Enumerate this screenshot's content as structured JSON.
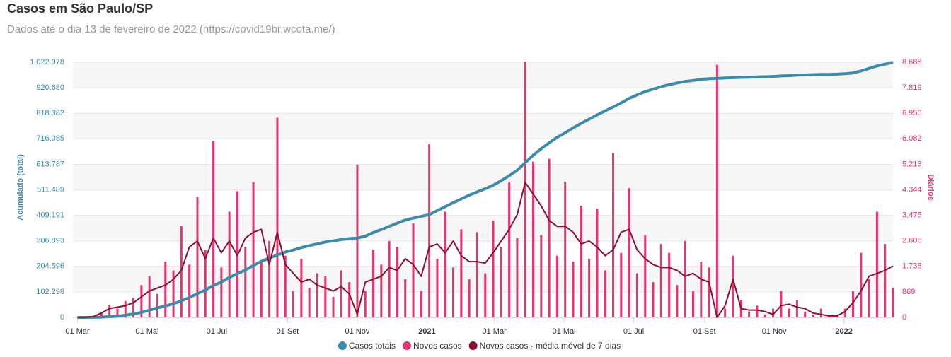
{
  "chart_data": {
    "type": "combo",
    "title": "Casos em São Paulo/SP",
    "subtitle": "Dados até o dia 13 de fevereiro de 2022 (https://covid19br.wcota.me/)",
    "ylabel": "Acumulado (total)",
    "y2label": "Diários",
    "grid": true,
    "legend": "bottom",
    "xlim": [
      "2020-02-26",
      "2022-02-13"
    ],
    "xticks": [
      {
        "value": "2020-03-01",
        "label": "01 Mar"
      },
      {
        "value": "2020-05-01",
        "label": "01 Mai"
      },
      {
        "value": "2020-07-01",
        "label": "01 Jul"
      },
      {
        "value": "2020-09-01",
        "label": "01 Set"
      },
      {
        "value": "2020-11-01",
        "label": "01 Nov"
      },
      {
        "value": "2021-01-01",
        "label": "2021"
      },
      {
        "value": "2021-03-01",
        "label": "01 Mar"
      },
      {
        "value": "2021-05-01",
        "label": "01 Mai"
      },
      {
        "value": "2021-07-01",
        "label": "01 Jul"
      },
      {
        "value": "2021-09-01",
        "label": "01 Set"
      },
      {
        "value": "2021-11-01",
        "label": "01 Nov"
      },
      {
        "value": "2022-01-01",
        "label": "2022"
      }
    ],
    "ylim": [
      0,
      1022978
    ],
    "yticks": [
      0,
      {
        "value": 102298,
        "label": "102.298"
      },
      {
        "value": 204596,
        "label": "204.596"
      },
      {
        "value": 306893,
        "label": "306.893"
      },
      {
        "value": 409191,
        "label": "409.191"
      },
      {
        "value": 511489,
        "label": "511.489"
      },
      {
        "value": 613787,
        "label": "613.787"
      },
      {
        "value": 716085,
        "label": "716.085"
      },
      {
        "value": 818382,
        "label": "818.382"
      },
      {
        "value": 920680,
        "label": "920.680"
      },
      {
        "value": 1022978,
        "label": "1.022.978"
      }
    ],
    "y2lim": [
      0,
      8688
    ],
    "y2ticks": [
      0,
      869,
      {
        "value": 1738,
        "label": "1.738"
      },
      {
        "value": 2606,
        "label": "2.606"
      },
      {
        "value": 3475,
        "label": "3.475"
      },
      {
        "value": 4344,
        "label": "4.344"
      },
      {
        "value": 5213,
        "label": "5.213"
      },
      {
        "value": 6082,
        "label": "6.082"
      },
      {
        "value": 6950,
        "label": "6.950"
      },
      {
        "value": 7819,
        "label": "7.819"
      },
      {
        "value": 8688,
        "label": "8.688"
      }
    ],
    "x": [
      "2020-03-01",
      "2020-03-08",
      "2020-03-15",
      "2020-03-22",
      "2020-03-29",
      "2020-04-05",
      "2020-04-12",
      "2020-04-19",
      "2020-04-26",
      "2020-05-03",
      "2020-05-10",
      "2020-05-17",
      "2020-05-24",
      "2020-05-31",
      "2020-06-07",
      "2020-06-14",
      "2020-06-21",
      "2020-06-28",
      "2020-07-05",
      "2020-07-12",
      "2020-07-19",
      "2020-07-26",
      "2020-08-02",
      "2020-08-09",
      "2020-08-16",
      "2020-08-23",
      "2020-08-30",
      "2020-09-06",
      "2020-09-13",
      "2020-09-20",
      "2020-09-27",
      "2020-10-04",
      "2020-10-11",
      "2020-10-18",
      "2020-10-25",
      "2020-11-01",
      "2020-11-08",
      "2020-11-15",
      "2020-11-22",
      "2020-11-29",
      "2020-12-06",
      "2020-12-13",
      "2020-12-20",
      "2020-12-27",
      "2021-01-03",
      "2021-01-10",
      "2021-01-17",
      "2021-01-24",
      "2021-01-31",
      "2021-02-07",
      "2021-02-14",
      "2021-02-21",
      "2021-02-28",
      "2021-03-07",
      "2021-03-14",
      "2021-03-21",
      "2021-03-28",
      "2021-04-04",
      "2021-04-11",
      "2021-04-18",
      "2021-04-25",
      "2021-05-02",
      "2021-05-09",
      "2021-05-16",
      "2021-05-23",
      "2021-05-30",
      "2021-06-06",
      "2021-06-13",
      "2021-06-20",
      "2021-06-27",
      "2021-07-04",
      "2021-07-11",
      "2021-07-18",
      "2021-07-25",
      "2021-08-01",
      "2021-08-08",
      "2021-08-15",
      "2021-08-22",
      "2021-08-29",
      "2021-09-05",
      "2021-09-12",
      "2021-09-19",
      "2021-09-26",
      "2021-10-03",
      "2021-10-10",
      "2021-10-17",
      "2021-10-24",
      "2021-10-31",
      "2021-11-07",
      "2021-11-14",
      "2021-11-21",
      "2021-11-28",
      "2021-12-05",
      "2021-12-12",
      "2021-12-19",
      "2021-12-26",
      "2022-01-02",
      "2022-01-09",
      "2022-01-16",
      "2022-01-23",
      "2022-01-30",
      "2022-02-06",
      "2022-02-13"
    ],
    "series": [
      {
        "name": "Casos totais",
        "color": "#3d8ba9",
        "kind": "line",
        "axis": "y",
        "values": [
          0,
          20,
          200,
          1000,
          3000,
          5000,
          9000,
          14000,
          20000,
          29000,
          38000,
          46000,
          55000,
          66000,
          80000,
          95000,
          110000,
          128000,
          142000,
          160000,
          175000,
          190000,
          208000,
          225000,
          238000,
          250000,
          262000,
          270000,
          280000,
          288000,
          295000,
          302000,
          307000,
          312000,
          316000,
          318000,
          326000,
          340000,
          352000,
          365000,
          378000,
          390000,
          398000,
          405000,
          412000,
          428000,
          444000,
          460000,
          475000,
          490000,
          503000,
          516000,
          530000,
          548000,
          568000,
          590000,
          620000,
          650000,
          676000,
          700000,
          722000,
          740000,
          760000,
          778000,
          795000,
          812000,
          828000,
          843000,
          860000,
          878000,
          892000,
          905000,
          915000,
          925000,
          933000,
          940000,
          946000,
          950000,
          954000,
          957000,
          958000,
          960000,
          961000,
          962000,
          963000,
          964000,
          965000,
          966000,
          968000,
          969000,
          971000,
          972000,
          973000,
          974000,
          974000,
          975000,
          977000,
          980000,
          988000,
          998000,
          1008000,
          1015000,
          1022978
        ]
      },
      {
        "name": "Novos casos",
        "color": "#e8336d",
        "kind": "bar",
        "axis": "y2",
        "values": [
          0,
          8,
          45,
          180,
          420,
          300,
          560,
          650,
          1100,
          1400,
          800,
          1900,
          1600,
          3100,
          1800,
          4100,
          2300,
          6000,
          1700,
          3600,
          4300,
          2400,
          4600,
          1900,
          2600,
          6800,
          2100,
          900,
          2000,
          1000,
          1500,
          1400,
          700,
          1600,
          1200,
          5200,
          900,
          2300,
          1800,
          2600,
          2400,
          1300,
          3200,
          900,
          5900,
          2000,
          3600,
          1700,
          3000,
          1300,
          2900,
          1500,
          3300,
          2400,
          4600,
          2700,
          8700,
          5300,
          2800,
          5400,
          2100,
          4600,
          1900,
          3800,
          2000,
          3700,
          1600,
          5600,
          2200,
          4400,
          1500,
          2800,
          1200,
          2500,
          2200,
          1100,
          2600,
          900,
          1900,
          1700,
          8600,
          300,
          2100,
          600,
          200,
          400,
          100,
          300,
          900,
          300,
          600,
          200,
          100,
          300,
          50,
          100,
          300,
          900,
          2200,
          1300,
          3600,
          2500,
          1000
        ]
      },
      {
        "name": "Novos casos - média móvel de 7 dias",
        "color": "#8c0f32",
        "kind": "line",
        "axis": "y2",
        "values": [
          0,
          5,
          30,
          150,
          300,
          350,
          400,
          500,
          700,
          900,
          1000,
          1100,
          1300,
          1600,
          2400,
          2600,
          2000,
          2700,
          2200,
          2600,
          2100,
          2700,
          2900,
          3000,
          1800,
          2900,
          1800,
          1500,
          1200,
          1300,
          1100,
          1000,
          900,
          1050,
          800,
          100,
          1200,
          1300,
          1400,
          1700,
          1600,
          2000,
          1800,
          1400,
          2400,
          2500,
          2200,
          2600,
          2100,
          1900,
          1900,
          1850,
          2200,
          2600,
          3000,
          3500,
          4600,
          4200,
          3800,
          3300,
          3100,
          3100,
          2900,
          2500,
          2600,
          2400,
          2100,
          2300,
          2900,
          3000,
          2300,
          2000,
          1800,
          1700,
          1700,
          1600,
          1400,
          1500,
          1300,
          1200,
          0,
          400,
          1300,
          300,
          250,
          250,
          200,
          100,
          400,
          450,
          350,
          300,
          150,
          100,
          50,
          50,
          200,
          500,
          900,
          1400,
          1500,
          1600,
          1750
        ]
      }
    ]
  }
}
